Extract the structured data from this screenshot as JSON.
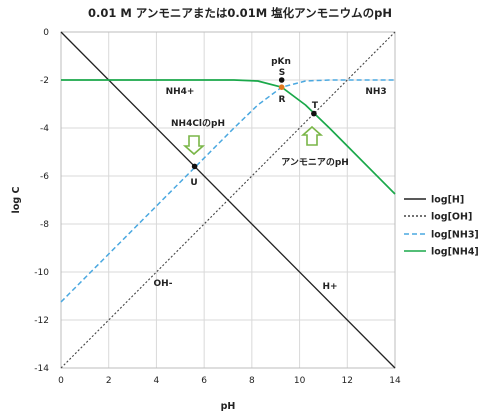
{
  "chart_data": {
    "type": "line",
    "title": "0.01 M アンモニアまたは0.01M 塩化アンモニウムのpH",
    "xlabel": "pH",
    "ylabel": "log C",
    "xlim": [
      0,
      14
    ],
    "ylim": [
      -14,
      0
    ],
    "xticks": [
      0,
      2,
      4,
      6,
      8,
      10,
      12,
      14
    ],
    "yticks": [
      0,
      -2,
      -4,
      -6,
      -8,
      -10,
      -12,
      -14
    ],
    "grid": true,
    "legend_position": "right",
    "pKa": 9.25,
    "total_conc_log": -2,
    "series": [
      {
        "name": "log[H]",
        "style": "solid",
        "color": "#222222",
        "points": [
          [
            0,
            0
          ],
          [
            14,
            -14
          ]
        ]
      },
      {
        "name": "log[OH]",
        "style": "dotted",
        "color": "#444444",
        "points": [
          [
            0,
            -14
          ],
          [
            14,
            0
          ]
        ]
      },
      {
        "name": "log[NH3]",
        "style": "dashed",
        "color": "#4aa8e0",
        "points": [
          [
            0,
            -11.25
          ],
          [
            5,
            -6.25
          ],
          [
            7.25,
            -4.0
          ],
          [
            8.25,
            -3.04
          ],
          [
            9.25,
            -2.3
          ],
          [
            10.25,
            -2.04
          ],
          [
            11.25,
            -2.0
          ],
          [
            14,
            -2.0
          ]
        ]
      },
      {
        "name": "log[NH4]",
        "style": "solid",
        "color": "#1aa84a",
        "points": [
          [
            0,
            -2.0
          ],
          [
            7.25,
            -2.0
          ],
          [
            8.25,
            -2.04
          ],
          [
            9.25,
            -2.3
          ],
          [
            10.25,
            -3.04
          ],
          [
            11.25,
            -4.0
          ],
          [
            12,
            -4.75
          ],
          [
            14,
            -6.75
          ]
        ]
      }
    ],
    "points": [
      {
        "name": "S",
        "x": 9.25,
        "y": -2.0,
        "color": "#111111"
      },
      {
        "name": "R",
        "x": 9.25,
        "y": -2.3,
        "color": "#e07a1f"
      },
      {
        "name": "T",
        "x": 10.6,
        "y": -3.4,
        "color": "#111111"
      },
      {
        "name": "U",
        "x": 5.6,
        "y": -5.6,
        "color": "#111111"
      }
    ],
    "annotations": {
      "pkn": "pKn",
      "s": "S",
      "r": "R",
      "t": "T",
      "u": "U",
      "nh4plus": "NH4+",
      "nh3": "NH3",
      "nh4cl_ph": "NH4ClのpH",
      "ammonia_ph": "アンモニアのpH",
      "oh_minus": "OH-",
      "h_plus": "H+"
    },
    "arrow_color": "#7ab648"
  }
}
